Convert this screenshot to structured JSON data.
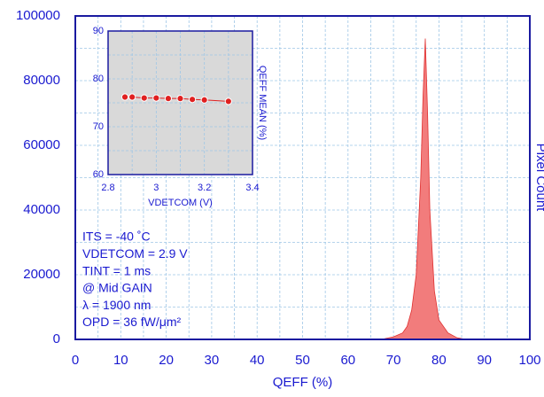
{
  "chart_data": [
    {
      "type": "area",
      "x_label": "QEFF (%)",
      "y_label": "Pixel Count",
      "color": "#f27c7c",
      "edge_color": "#e03030",
      "x": [
        65,
        68,
        70,
        72,
        73,
        74,
        75,
        76,
        76.5,
        77,
        77.5,
        78,
        79,
        80,
        82,
        84,
        86
      ],
      "values": [
        0,
        200,
        800,
        2000,
        4000,
        9000,
        20000,
        50000,
        75000,
        93000,
        70000,
        40000,
        15000,
        6000,
        2000,
        500,
        0
      ],
      "xlim": [
        0,
        100
      ],
      "xticks": [
        0,
        10,
        20,
        30,
        40,
        50,
        60,
        70,
        80,
        90,
        100
      ],
      "ylim": [
        0,
        100000
      ],
      "yticks": [
        0,
        20000,
        40000,
        60000,
        80000,
        100000
      ],
      "grid": true,
      "annotations": [
        "ITS = -40 ˚C",
        "VDETCOM = 2.9 V",
        "TINT = 1 ms",
        "@ Mid GAIN",
        "λ = 1900 nm",
        "OPD = 36 fW/μm²"
      ]
    },
    {
      "type": "scatter",
      "x_label": "VDETCOM (V)",
      "y_label": "QEFF MEAN (%)",
      "color": "#e02020",
      "edge_color": "#ffffff",
      "background": "#d9d9d9",
      "x": [
        2.87,
        2.9,
        2.95,
        3.0,
        3.05,
        3.1,
        3.15,
        3.2,
        3.3
      ],
      "values": [
        76.2,
        76.2,
        76.0,
        76.0,
        75.9,
        75.9,
        75.7,
        75.6,
        75.3
      ],
      "xlim": [
        2.8,
        3.4
      ],
      "xticks": [
        2.8,
        3,
        3.2,
        3.4
      ],
      "ylim": [
        60,
        90
      ],
      "yticks": [
        60,
        70,
        80,
        90
      ],
      "grid": true
    }
  ]
}
